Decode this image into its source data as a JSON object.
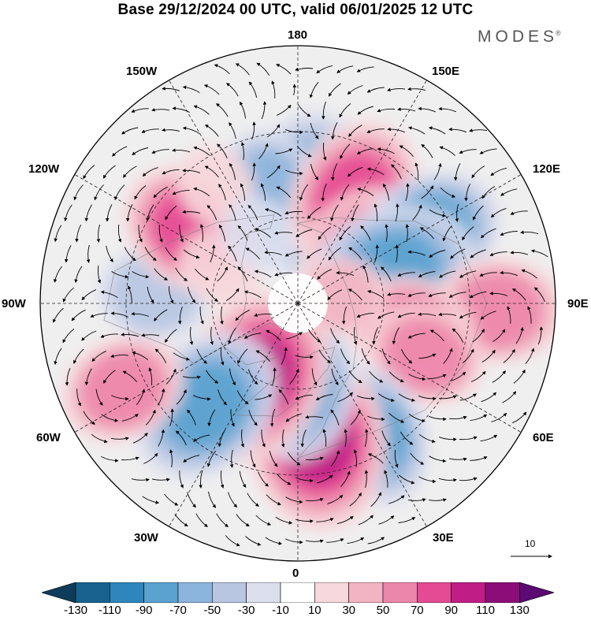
{
  "title": "Base 29/12/2024 00 UTC, valid 06/01/2025 12 UTC",
  "brand": "MODES",
  "brand_mark": "®",
  "longitude_labels": {
    "lon_180": "180",
    "lon_150e": "150E",
    "lon_120e": "120E",
    "lon_90e": "90E",
    "lon_60e": "60E",
    "lon_30e": "30E",
    "lon_0": "0",
    "lon_30w": "30W",
    "lon_60w": "60W",
    "lon_90w": "90W",
    "lon_120w": "120W",
    "lon_150w": "150W"
  },
  "vector_reference": {
    "value": "10",
    "icon": "arrow-right-icon"
  },
  "colorbar": {
    "ticks": [
      "-130",
      "-110",
      "-90",
      "-70",
      "-50",
      "-30",
      "-10",
      "10",
      "30",
      "50",
      "70",
      "90",
      "110",
      "130"
    ],
    "colors": [
      "#0e3c5a",
      "#17628f",
      "#2f86bd",
      "#5aa2cf",
      "#8cb4dc",
      "#b8c6e2",
      "#dcdfee",
      "#ffffff",
      "#f7d8dc",
      "#f2b4c2",
      "#ed86ab",
      "#e54a94",
      "#c01d86",
      "#8c0d78",
      "#5a0a72"
    ]
  },
  "map": {
    "projection": "north-polar-stereographic",
    "anomalies": [
      {
        "lon": 173,
        "lat": 52,
        "value": -85
      },
      {
        "lon": 195,
        "lat": 50,
        "value": -55
      },
      {
        "lon": 152,
        "lat": 48,
        "value": 78
      },
      {
        "lon": 130,
        "lat": 60,
        "value": 62
      },
      {
        "lon": 118,
        "lat": 38,
        "value": -70
      },
      {
        "lon": 108,
        "lat": 55,
        "value": -85
      },
      {
        "lon": 88,
        "lat": 20,
        "value": 60
      },
      {
        "lon": 78,
        "lat": 50,
        "value": 55
      },
      {
        "lon": 68,
        "lat": 42,
        "value": 50
      },
      {
        "lon": 28,
        "lat": 38,
        "value": -70
      },
      {
        "lon": 8,
        "lat": 42,
        "value": 95
      },
      {
        "lon": 358,
        "lat": 62,
        "value": -75
      },
      {
        "lon": 330,
        "lat": 60,
        "value": 95
      },
      {
        "lon": 318,
        "lat": 42,
        "value": -80
      },
      {
        "lon": 296,
        "lat": 22,
        "value": 55
      },
      {
        "lon": 266,
        "lat": 40,
        "value": -45
      },
      {
        "lon": 235,
        "lat": 45,
        "value": 70
      },
      {
        "lon": 215,
        "lat": 40,
        "value": 25
      },
      {
        "lon": 245,
        "lat": 60,
        "value": 25
      },
      {
        "lon": 210,
        "lat": 62,
        "value": -20
      },
      {
        "lon": 100,
        "lat": 75,
        "value": 30
      }
    ]
  }
}
